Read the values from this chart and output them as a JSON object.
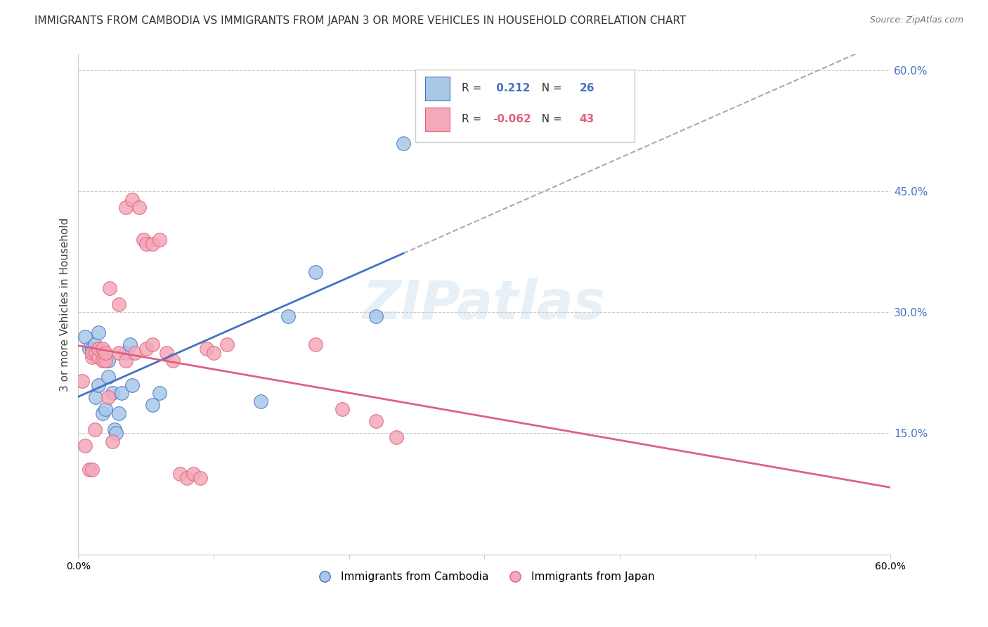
{
  "title": "IMMIGRANTS FROM CAMBODIA VS IMMIGRANTS FROM JAPAN 3 OR MORE VEHICLES IN HOUSEHOLD CORRELATION CHART",
  "source": "Source: ZipAtlas.com",
  "ylabel": "3 or more Vehicles in Household",
  "xlabel_legend1": "Immigrants from Cambodia",
  "xlabel_legend2": "Immigrants from Japan",
  "r1": 0.212,
  "n1": 26,
  "r2": -0.062,
  "n2": 43,
  "xlim": [
    0.0,
    0.6
  ],
  "ylim": [
    0.0,
    0.62
  ],
  "color_cambodia": "#a8c8e8",
  "color_japan": "#f4a8b8",
  "color_line_cambodia": "#4472c4",
  "color_line_japan": "#e06080",
  "watermark": "ZIPatlas",
  "cambodia_x": [
    0.005,
    0.008,
    0.01,
    0.012,
    0.013,
    0.015,
    0.015,
    0.018,
    0.02,
    0.022,
    0.022,
    0.025,
    0.027,
    0.028,
    0.03,
    0.032,
    0.035,
    0.038,
    0.04,
    0.055,
    0.06,
    0.135,
    0.155,
    0.175,
    0.22,
    0.24
  ],
  "cambodia_y": [
    0.27,
    0.255,
    0.255,
    0.26,
    0.195,
    0.275,
    0.21,
    0.175,
    0.18,
    0.24,
    0.22,
    0.2,
    0.155,
    0.15,
    0.175,
    0.2,
    0.25,
    0.26,
    0.21,
    0.185,
    0.2,
    0.19,
    0.295,
    0.35,
    0.295,
    0.51
  ],
  "japan_x": [
    0.003,
    0.005,
    0.008,
    0.01,
    0.01,
    0.01,
    0.012,
    0.013,
    0.015,
    0.015,
    0.018,
    0.018,
    0.02,
    0.02,
    0.022,
    0.023,
    0.025,
    0.03,
    0.03,
    0.035,
    0.035,
    0.04,
    0.042,
    0.045,
    0.048,
    0.05,
    0.05,
    0.055,
    0.055,
    0.06,
    0.065,
    0.07,
    0.075,
    0.08,
    0.085,
    0.09,
    0.095,
    0.1,
    0.11,
    0.175,
    0.195,
    0.22,
    0.235
  ],
  "japan_y": [
    0.215,
    0.135,
    0.105,
    0.245,
    0.25,
    0.105,
    0.155,
    0.25,
    0.245,
    0.255,
    0.255,
    0.24,
    0.24,
    0.25,
    0.195,
    0.33,
    0.14,
    0.25,
    0.31,
    0.24,
    0.43,
    0.44,
    0.25,
    0.43,
    0.39,
    0.385,
    0.255,
    0.385,
    0.26,
    0.39,
    0.25,
    0.24,
    0.1,
    0.095,
    0.1,
    0.095,
    0.255,
    0.25,
    0.26,
    0.26,
    0.18,
    0.165,
    0.145
  ]
}
